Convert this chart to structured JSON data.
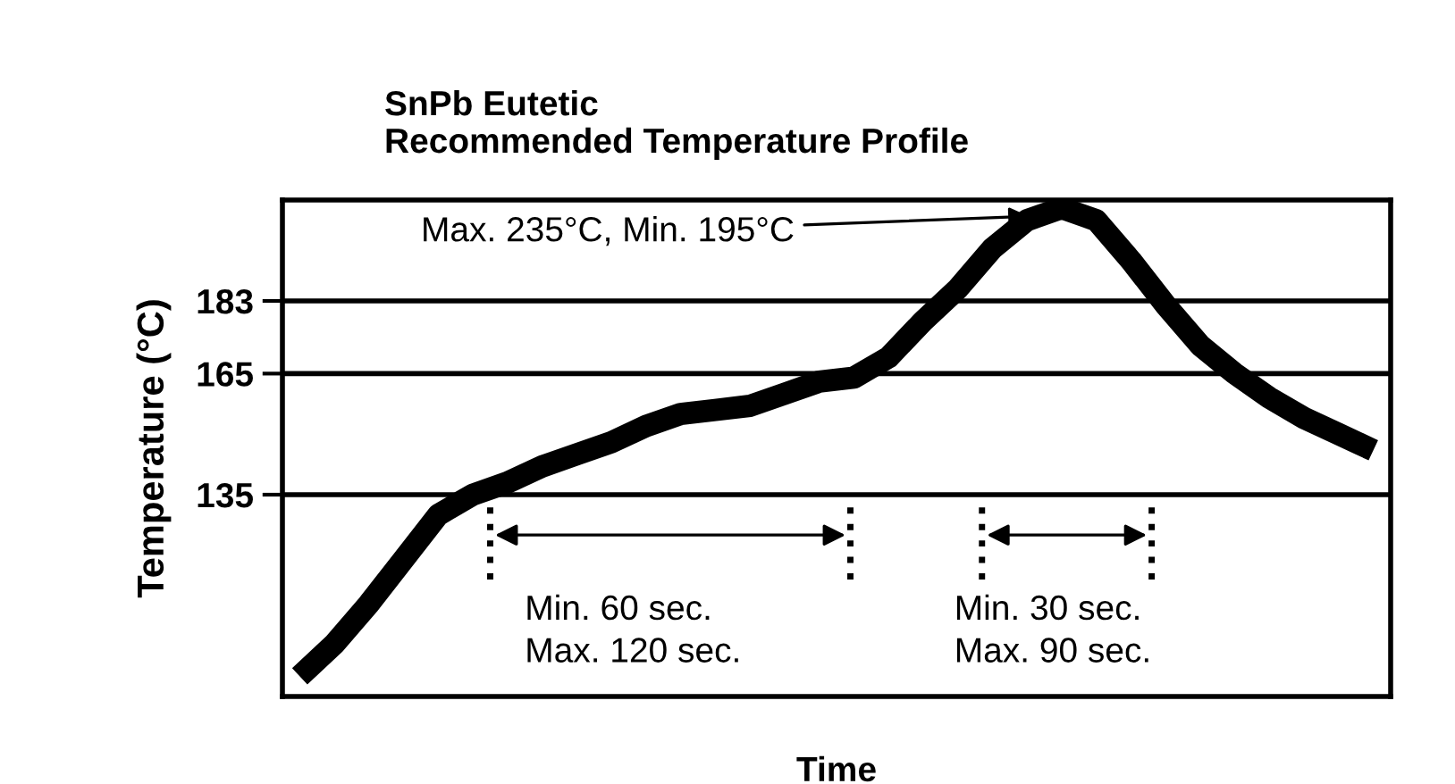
{
  "chart_data": {
    "type": "line",
    "title": "SnPb Eutetic\nRecommended Temperature Profile",
    "xlabel": "Time",
    "ylabel": "Temperature (°C)",
    "categories": [
      null,
      null,
      null,
      null,
      null,
      null,
      null,
      null,
      null,
      null,
      null,
      null,
      null,
      null,
      null,
      null,
      null,
      null,
      null,
      null,
      null,
      null,
      null,
      null,
      null,
      null,
      null,
      null,
      null,
      null,
      null,
      null
    ],
    "series": [
      {
        "color": "#000000",
        "values": [
          90,
          98,
          108,
          119,
          130,
          135,
          138,
          142,
          145,
          148,
          152,
          155,
          156,
          157,
          160,
          163,
          164,
          169,
          178,
          186,
          196,
          203,
          206,
          203,
          193,
          182,
          172,
          165,
          159,
          154,
          150,
          146
        ]
      }
    ],
    "ylim": [
      85,
      208
    ],
    "yticks": [
      135,
      165,
      183
    ],
    "grid": "y",
    "tick_labels": "y",
    "legend": false,
    "marker": "none",
    "line_style": "solid",
    "annotations": [
      "Max. 235°C, Min. 195°C",
      "Min. 60 sec.\nMax. 120 sec.",
      "Min. 30 sec.\nMax. 90 sec."
    ]
  }
}
